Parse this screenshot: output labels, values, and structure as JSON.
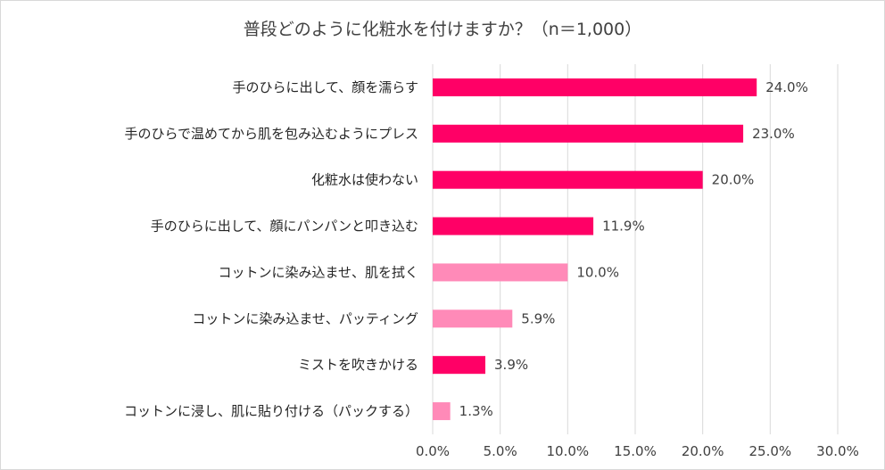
{
  "chart_data": {
    "type": "bar",
    "orientation": "horizontal",
    "title": "普段どのように化粧水を付けますか？（n＝1,000）",
    "categories": [
      "手のひらに出して、顔を濡らす",
      "手のひらで温めてから肌を包み込むようにプレス",
      "化粧水は使わない",
      "手のひらに出して、顔にパンパンと叩き込む",
      "コットンに染み込ませ、肌を拭く",
      "コットンに染み込ませ、パッティング",
      "ミストを吹きかける",
      "コットンに浸し、肌に貼り付ける（パックする）"
    ],
    "values": [
      24.0,
      23.0,
      20.0,
      11.9,
      10.0,
      5.9,
      3.9,
      1.3
    ],
    "value_labels": [
      "24.0%",
      "23.0%",
      "20.0%",
      "11.9%",
      "10.0%",
      "5.9%",
      "3.9%",
      "1.3%"
    ],
    "bar_colors": [
      "#ff0066",
      "#ff0066",
      "#ff0066",
      "#ff0066",
      "#ff8ab8",
      "#ff8ab8",
      "#ff0066",
      "#ff8ab8"
    ],
    "xlim": [
      0,
      30
    ],
    "xticks": [
      0,
      5,
      10,
      15,
      20,
      25,
      30
    ],
    "xtick_labels": [
      "0.0%",
      "5.0%",
      "10.0%",
      "15.0%",
      "20.0%",
      "25.0%",
      "30.0%"
    ],
    "xlabel": "",
    "ylabel": "",
    "grid": "vertical",
    "legend": "none"
  }
}
